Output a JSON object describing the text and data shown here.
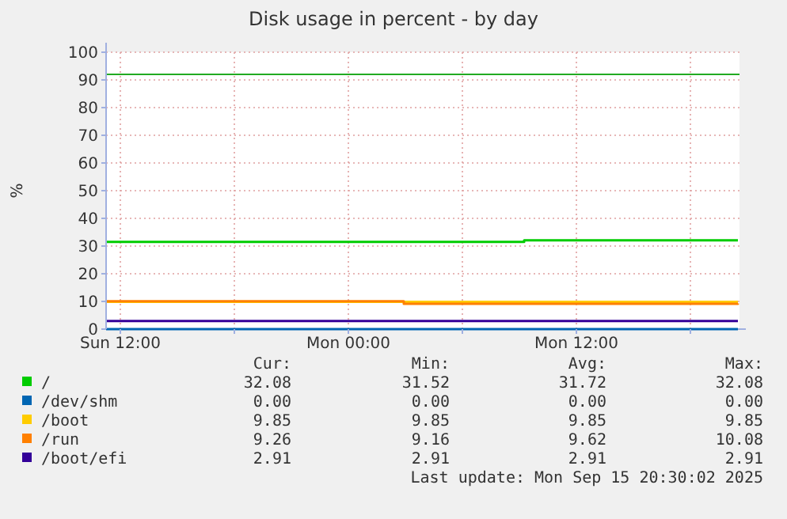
{
  "chart_data": {
    "type": "step",
    "title": "Disk usage in percent - by day",
    "ylabel": "%",
    "xlim": [
      "2025-09-14T11:15",
      "2025-09-15T20:35"
    ],
    "xticks": [
      {
        "value": "2025-09-14T12:00",
        "label": "Sun 12:00"
      },
      {
        "value": "2025-09-14T18:00",
        "label": null
      },
      {
        "value": "2025-09-15T00:00",
        "label": "Mon 00:00"
      },
      {
        "value": "2025-09-15T06:00",
        "label": null
      },
      {
        "value": "2025-09-15T12:00",
        "label": "Mon 12:00"
      },
      {
        "value": "2025-09-15T18:00",
        "label": null
      }
    ],
    "ylim": [
      0,
      100
    ],
    "yticks": [
      0,
      10,
      20,
      30,
      40,
      50,
      60,
      70,
      80,
      90,
      100
    ],
    "grid": true,
    "legend": "bottom",
    "ref_lines": [
      {
        "axis": "y",
        "value": 92,
        "color": "#22aa22"
      }
    ],
    "series": [
      {
        "name": "/",
        "color": "#00cc00",
        "x": [
          "2025-09-14T11:15",
          "2025-09-15T09:15",
          "2025-09-15T20:30"
        ],
        "values": [
          31.52,
          32.08,
          32.08
        ]
      },
      {
        "name": "/dev/shm",
        "color": "#0066b3",
        "x": [
          "2025-09-14T11:15",
          "2025-09-15T20:30"
        ],
        "values": [
          0,
          0
        ]
      },
      {
        "name": "/boot",
        "color": "#ffcc00",
        "x": [
          "2025-09-14T11:15",
          "2025-09-15T20:30"
        ],
        "values": [
          9.85,
          9.85
        ]
      },
      {
        "name": "/run",
        "color": "#ff8000",
        "x": [
          "2025-09-14T11:15",
          "2025-09-15T02:55",
          "2025-09-15T20:30"
        ],
        "values": [
          10.08,
          9.16,
          9.26
        ]
      },
      {
        "name": "/boot/efi",
        "color": "#330099",
        "x": [
          "2025-09-14T11:15",
          "2025-09-15T20:30"
        ],
        "values": [
          2.91,
          2.91
        ]
      }
    ],
    "annotations": [
      "Cur:",
      "Min:",
      "Avg:",
      "Max:",
      "32.08",
      "31.52",
      "31.72",
      "32.08",
      "0.00",
      "0.00",
      "0.00",
      "0.00",
      "9.85",
      "9.85",
      "9.85",
      "9.85",
      "9.26",
      "9.16",
      "9.62",
      "10.08",
      "2.91",
      "2.91",
      "2.91",
      "2.91",
      "Last update: Mon Sep 15 20:30:02 2025"
    ]
  }
}
